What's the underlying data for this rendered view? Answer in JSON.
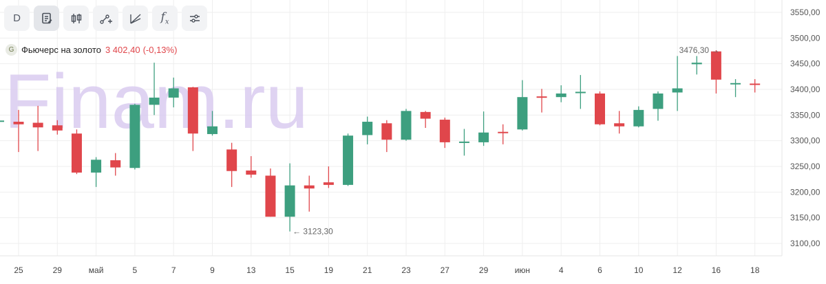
{
  "toolbar": {
    "interval_label": "D",
    "function_label": "f"
  },
  "instrument": {
    "badge": "G",
    "name": "Фьючерс на золото",
    "price": "3 402,40",
    "change": "(-0,13%)"
  },
  "watermark": "Finam.ru",
  "colors": {
    "up": "#3d9f7f",
    "down": "#e0464b",
    "grid": "#eeeeee",
    "watermark": "#d8c9f0"
  },
  "chart_data": {
    "type": "candlestick",
    "ylim": [
      3080,
      3570
    ],
    "y_ticks": [
      3100,
      3150,
      3200,
      3250,
      3300,
      3350,
      3400,
      3450,
      3500,
      3550
    ],
    "y_tick_labels": [
      "3100,00",
      "3150,00",
      "3200,00",
      "3250,00",
      "3300,00",
      "3350,00",
      "3400,00",
      "3450,00",
      "3500,00",
      "3550,00"
    ],
    "x_labels": [
      "25",
      "29",
      "май",
      "5",
      "7",
      "9",
      "13",
      "15",
      "19",
      "21",
      "23",
      "27",
      "29",
      "июн",
      "4",
      "6",
      "10",
      "12",
      "16",
      "18"
    ],
    "candles": [
      {
        "o": 3337,
        "h": 3360,
        "l": 3278,
        "c": 3332
      },
      {
        "o": 3335,
        "h": 3368,
        "l": 3280,
        "c": 3326
      },
      {
        "o": 3330,
        "h": 3340,
        "l": 3312,
        "c": 3320
      },
      {
        "o": 3314,
        "h": 3322,
        "l": 3235,
        "c": 3238
      },
      {
        "o": 3238,
        "h": 3268,
        "l": 3210,
        "c": 3263
      },
      {
        "o": 3262,
        "h": 3276,
        "l": 3232,
        "c": 3248
      },
      {
        "o": 3247,
        "h": 3372,
        "l": 3244,
        "c": 3370
      },
      {
        "o": 3370,
        "h": 3452,
        "l": 3350,
        "c": 3384
      },
      {
        "o": 3384,
        "h": 3423,
        "l": 3365,
        "c": 3402
      },
      {
        "o": 3404,
        "h": 3405,
        "l": 3280,
        "c": 3314
      },
      {
        "o": 3313,
        "h": 3358,
        "l": 3310,
        "c": 3328
      },
      {
        "o": 3283,
        "h": 3296,
        "l": 3210,
        "c": 3241
      },
      {
        "o": 3242,
        "h": 3270,
        "l": 3228,
        "c": 3234
      },
      {
        "o": 3232,
        "h": 3246,
        "l": 3152,
        "c": 3152
      },
      {
        "o": 3152,
        "h": 3256,
        "l": 3123.3,
        "c": 3213
      },
      {
        "o": 3213,
        "h": 3232,
        "l": 3162,
        "c": 3207
      },
      {
        "o": 3219,
        "h": 3250,
        "l": 3208,
        "c": 3214
      },
      {
        "o": 3214,
        "h": 3314,
        "l": 3212,
        "c": 3310
      },
      {
        "o": 3311,
        "h": 3347,
        "l": 3293,
        "c": 3337
      },
      {
        "o": 3334,
        "h": 3340,
        "l": 3278,
        "c": 3302
      },
      {
        "o": 3302,
        "h": 3362,
        "l": 3300,
        "c": 3358
      },
      {
        "o": 3356,
        "h": 3358,
        "l": 3325,
        "c": 3343
      },
      {
        "o": 3341,
        "h": 3345,
        "l": 3286,
        "c": 3297
      },
      {
        "o": 3296,
        "h": 3323,
        "l": 3271,
        "c": 3297
      },
      {
        "o": 3297,
        "h": 3357,
        "l": 3290,
        "c": 3316
      },
      {
        "o": 3316,
        "h": 3332,
        "l": 3293,
        "c": 3314
      },
      {
        "o": 3322,
        "h": 3418,
        "l": 3320,
        "c": 3385
      },
      {
        "o": 3385,
        "h": 3401,
        "l": 3355,
        "c": 3384
      },
      {
        "o": 3385,
        "h": 3408,
        "l": 3375,
        "c": 3392
      },
      {
        "o": 3394,
        "h": 3428,
        "l": 3362,
        "c": 3394
      },
      {
        "o": 3392,
        "h": 3396,
        "l": 3330,
        "c": 3332
      },
      {
        "o": 3334,
        "h": 3358,
        "l": 3314,
        "c": 3328
      },
      {
        "o": 3328,
        "h": 3367,
        "l": 3326,
        "c": 3360
      },
      {
        "o": 3362,
        "h": 3396,
        "l": 3339,
        "c": 3392
      },
      {
        "o": 3394,
        "h": 3465,
        "l": 3358,
        "c": 3402
      },
      {
        "o": 3449,
        "h": 3465,
        "l": 3429,
        "c": 3452
      },
      {
        "o": 3474,
        "h": 3476.3,
        "l": 3392,
        "c": 3419
      },
      {
        "o": 3409,
        "h": 3420,
        "l": 3385,
        "c": 3411
      },
      {
        "o": 3410,
        "h": 3420,
        "l": 3394,
        "c": 3408
      }
    ],
    "annotations": [
      {
        "label": "3123,30",
        "candle": 14,
        "value": 3123.3,
        "arrow": "←"
      },
      {
        "label": "3476,30",
        "candle": 36,
        "value": 3476.3,
        "arrow": "→"
      }
    ]
  }
}
